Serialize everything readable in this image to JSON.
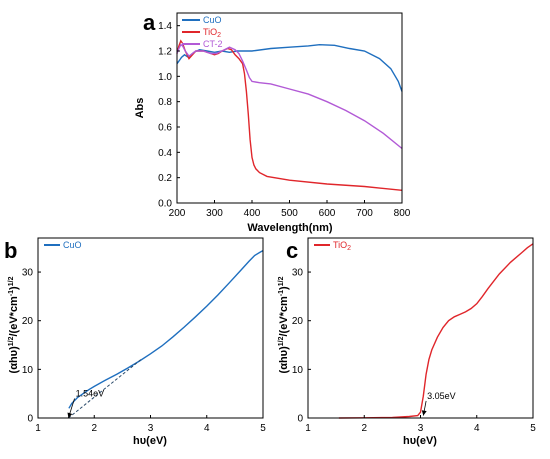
{
  "chart_data": [
    {
      "panel_label": "a",
      "type": "line",
      "xlabel": "Wavelength(nm)",
      "ylabel": "Abs",
      "xlim": [
        200,
        800
      ],
      "ylim": [
        0,
        1.5
      ],
      "xticks": [
        200,
        300,
        400,
        500,
        600,
        700,
        800
      ],
      "yticks": [
        0.0,
        0.2,
        0.4,
        0.6,
        0.8,
        1.0,
        1.2,
        1.4
      ],
      "ytick_labels": [
        "0.0",
        "0.2",
        "0.4",
        "0.6",
        "0.8",
        "1.0",
        "1.2",
        "1.4"
      ],
      "legend_position": "top-left",
      "series": [
        {
          "name": "CuO",
          "color": "#1f6fbf",
          "x": [
            200,
            205,
            212,
            220,
            230,
            245,
            260,
            280,
            300,
            320,
            340,
            360,
            380,
            400,
            450,
            500,
            550,
            580,
            620,
            660,
            700,
            740,
            770,
            790,
            800
          ],
          "y": [
            1.1,
            1.12,
            1.15,
            1.17,
            1.15,
            1.19,
            1.21,
            1.2,
            1.19,
            1.2,
            1.19,
            1.2,
            1.2,
            1.2,
            1.22,
            1.23,
            1.24,
            1.25,
            1.245,
            1.22,
            1.2,
            1.14,
            1.06,
            0.96,
            0.88
          ]
        },
        {
          "name": "TiO2",
          "name_main": "TiO",
          "name_sub": "2",
          "color": "#e0262b",
          "x": [
            200,
            205,
            210,
            215,
            222,
            232,
            250,
            270,
            290,
            300,
            310,
            320,
            335,
            345,
            355,
            365,
            375,
            380,
            385,
            390,
            395,
            400,
            405,
            410,
            420,
            440,
            500,
            600,
            700,
            800
          ],
          "y": [
            1.18,
            1.24,
            1.28,
            1.26,
            1.2,
            1.14,
            1.2,
            1.2,
            1.18,
            1.17,
            1.18,
            1.2,
            1.22,
            1.21,
            1.17,
            1.14,
            1.1,
            1.02,
            0.88,
            0.7,
            0.5,
            0.36,
            0.3,
            0.27,
            0.24,
            0.21,
            0.18,
            0.15,
            0.13,
            0.1
          ]
        },
        {
          "name": "CT-2",
          "color": "#b25ad6",
          "x": [
            200,
            205,
            210,
            215,
            222,
            232,
            250,
            270,
            290,
            305,
            320,
            340,
            355,
            365,
            375,
            385,
            393,
            400,
            420,
            450,
            500,
            550,
            600,
            650,
            700,
            750,
            800
          ],
          "y": [
            1.18,
            1.22,
            1.25,
            1.24,
            1.2,
            1.16,
            1.2,
            1.2,
            1.18,
            1.18,
            1.2,
            1.23,
            1.21,
            1.18,
            1.12,
            1.05,
            0.99,
            0.96,
            0.95,
            0.94,
            0.9,
            0.86,
            0.8,
            0.73,
            0.65,
            0.55,
            0.43
          ]
        }
      ]
    },
    {
      "panel_label": "b",
      "type": "line",
      "xlabel": "hυ(eV)",
      "ylabel_main": "(αhυ)",
      "ylabel_sup1": "1/2",
      "ylabel_mid": "/(eV*cm",
      "ylabel_sup2": "-1",
      "ylabel_end": ")",
      "ylabel_sup3": "1/2",
      "xlim": [
        1,
        5
      ],
      "ylim": [
        0,
        37
      ],
      "xticks": [
        1,
        2,
        3,
        4,
        5
      ],
      "yticks": [
        0,
        10,
        20,
        30
      ],
      "legend_position": "top-left",
      "series": [
        {
          "name": "CuO",
          "color": "#1f6fbf",
          "x": [
            1.55,
            1.6,
            1.7,
            1.8,
            1.9,
            2.0,
            2.2,
            2.4,
            2.6,
            2.8,
            3.0,
            3.2,
            3.4,
            3.6,
            3.8,
            4.0,
            4.2,
            4.4,
            4.6,
            4.75,
            4.85,
            4.95,
            5.0
          ],
          "y": [
            2.0,
            3.0,
            4.2,
            5.0,
            5.8,
            6.5,
            7.8,
            9.0,
            10.3,
            11.7,
            13.2,
            14.8,
            16.7,
            18.7,
            20.8,
            23.0,
            25.3,
            27.8,
            30.3,
            32.2,
            33.4,
            34.1,
            34.4
          ]
        }
      ],
      "tangent": {
        "x": [
          1.54,
          2.85
        ],
        "y": [
          0,
          12.2
        ]
      },
      "annotation": {
        "text": "1.54eV",
        "x": 1.54,
        "y": 0,
        "text_x": 1.65,
        "text_y": 4.0
      }
    },
    {
      "panel_label": "c",
      "type": "line",
      "xlabel": "hυ(eV)",
      "ylabel_main": "(αhυ)",
      "ylabel_sup1": "1/2",
      "ylabel_mid": "/(eV*cm",
      "ylabel_sup2": "-1",
      "ylabel_end": ")",
      "ylabel_sup3": "1/2",
      "xlim": [
        1,
        5
      ],
      "ylim": [
        0,
        37
      ],
      "xticks": [
        1,
        2,
        3,
        4,
        5
      ],
      "yticks": [
        0,
        10,
        20,
        30
      ],
      "legend_position": "top-left",
      "series": [
        {
          "name": "TiO2",
          "name_main": "TiO",
          "name_sub": "2",
          "color": "#e0262b",
          "x": [
            1.55,
            2.0,
            2.5,
            2.8,
            2.95,
            3.0,
            3.05,
            3.1,
            3.15,
            3.2,
            3.3,
            3.4,
            3.5,
            3.6,
            3.7,
            3.8,
            3.9,
            4.0,
            4.1,
            4.2,
            4.4,
            4.6,
            4.8,
            4.9,
            5.0
          ],
          "y": [
            0.0,
            0.05,
            0.1,
            0.3,
            0.5,
            1.2,
            4.5,
            9.0,
            12.0,
            14.0,
            16.6,
            18.6,
            20.0,
            20.8,
            21.3,
            21.8,
            22.5,
            23.5,
            25.0,
            26.6,
            29.6,
            32.0,
            34.0,
            35.0,
            35.8
          ]
        }
      ],
      "annotation": {
        "text": "3.05eV",
        "x": 3.05,
        "y": 0.5,
        "text_x": 3.1,
        "text_y": 3.5
      }
    }
  ]
}
